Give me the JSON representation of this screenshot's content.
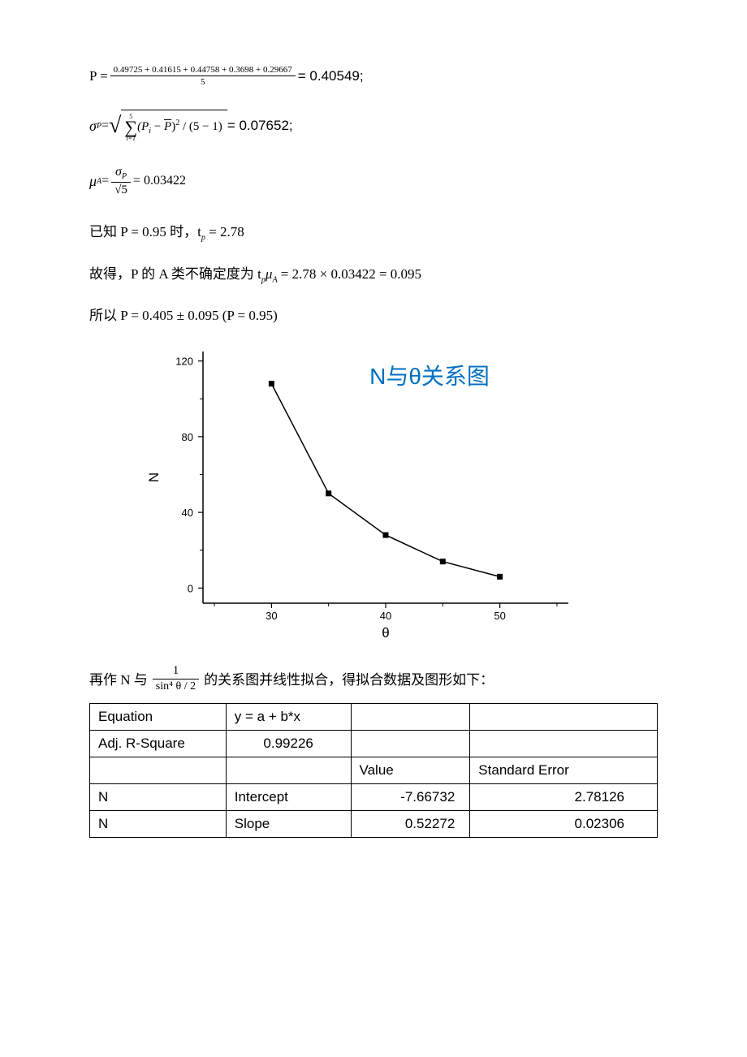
{
  "eqs": {
    "p_mean": {
      "lhs": "P =",
      "numerator": "0.49725 + 0.41615 + 0.44758 + 0.3698 + 0.29667",
      "denominator": "5",
      "rhs": "= 0.40549;"
    },
    "sigma": {
      "lhs_var": "σ",
      "lhs_sub": "P",
      "eq": " = ",
      "sum_top": "5",
      "sum_bot": "i=1",
      "body": "(P",
      "body_isub": "i",
      "body2": " − ",
      "body_pbar": "P",
      "body3": ")",
      "body_sup": "2",
      "body4": " / (5 − 1)",
      "rhs": " = 0.07652;"
    },
    "mu": {
      "lhs_var": "μ",
      "lhs_sub": "A",
      "eq": " = ",
      "num_var": "σ",
      "num_sub": "P",
      "den": "√5",
      "rhs": " = 0.03422"
    },
    "known": "已知 P = 0.95 时，t",
    "known_sub": "p",
    "known_rhs": " = 2.78",
    "so_prefix": "故得，P 的 A 类不确定度为  t",
    "so_sub1": "p",
    "so_mu": "μ",
    "so_sub2": "A",
    "so_rhs": " = 2.78 × 0.03422 = 0.095",
    "result_prefix": "所以     P = 0.405 ± 0.095      (P = 0.95)"
  },
  "chart": {
    "title": "N与θ关系图",
    "title_color": "#0070c0",
    "title_fontsize": 28,
    "title_font": "Arial, sans-serif",
    "x_label": "θ",
    "y_label": "N",
    "background_color": "#ffffff",
    "axis_color": "#000000",
    "tick_color": "#000000",
    "point_color": "#000000",
    "line_color": "#000000",
    "line_width": 1.5,
    "marker_size": 7,
    "marker_type": "square",
    "xlim": [
      24,
      56
    ],
    "ylim": [
      -8,
      125
    ],
    "xticks": [
      30,
      40,
      50
    ],
    "yticks": [
      0,
      40,
      80,
      120
    ],
    "tick_fontsize": 13,
    "label_fontsize": 17,
    "points": [
      {
        "x": 30,
        "y": 108
      },
      {
        "x": 35,
        "y": 50
      },
      {
        "x": 40,
        "y": 28
      },
      {
        "x": 45,
        "y": 14
      },
      {
        "x": 50,
        "y": 6
      }
    ]
  },
  "postchart": {
    "prefix": "再作 N 与",
    "frac_num": "1",
    "frac_den": "sin⁴ θ / 2",
    "suffix": "的关系图并线性拟合，得拟合数据及图形如下："
  },
  "table": {
    "rows": [
      [
        "Equation",
        "y = a + b*x",
        "",
        ""
      ],
      [
        "Adj. R-Square",
        "0.99226",
        "",
        ""
      ],
      [
        "",
        "",
        "Value",
        "Standard Error"
      ],
      [
        "N",
        "Intercept",
        "-7.66732",
        "2.78126"
      ],
      [
        "N",
        "Slope",
        "0.52272",
        "0.02306"
      ]
    ]
  }
}
